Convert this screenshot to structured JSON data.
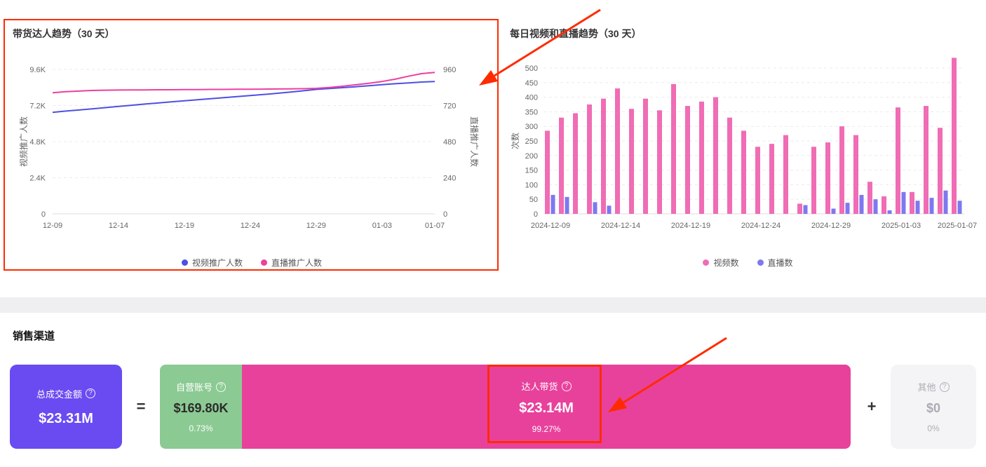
{
  "page": {
    "annotation_color": "#FF2B00"
  },
  "chart_data": [
    {
      "id": "promoter-trend",
      "type": "line",
      "title": "带货达人趋势（30 天）",
      "grid": "horizontal-dashed",
      "legend_position": "bottom",
      "x": [
        "12-09",
        "12-10",
        "12-11",
        "12-12",
        "12-13",
        "12-14",
        "12-15",
        "12-16",
        "12-17",
        "12-18",
        "12-19",
        "12-20",
        "12-21",
        "12-22",
        "12-23",
        "12-24",
        "12-25",
        "12-26",
        "12-27",
        "12-28",
        "12-29",
        "12-30",
        "12-31",
        "01-01",
        "01-02",
        "01-03",
        "01-04",
        "01-05",
        "01-06",
        "01-07"
      ],
      "x_tick_index": [
        0,
        5,
        10,
        15,
        20,
        25,
        29
      ],
      "x_tick_labels": [
        "12-09",
        "12-14",
        "12-19",
        "12-24",
        "12-29",
        "01-03",
        "01-07"
      ],
      "left_axis": {
        "label": "视频推广人数",
        "max": 9600,
        "ticks": [
          0,
          2400,
          4800,
          7200,
          9600
        ],
        "tick_labels": [
          "0",
          "2.4K",
          "4.8K",
          "7.2K",
          "9.6K"
        ]
      },
      "right_axis": {
        "label": "直播推广人数",
        "max": 960,
        "ticks": [
          0,
          240,
          480,
          720,
          960
        ],
        "tick_labels": [
          "0",
          "240",
          "480",
          "720",
          "960"
        ]
      },
      "series": [
        {
          "name": "视频推广人数",
          "axis": "left",
          "color": "#4D50E2",
          "values": [
            6750,
            6830,
            6900,
            6980,
            7060,
            7140,
            7220,
            7300,
            7370,
            7440,
            7510,
            7580,
            7650,
            7720,
            7790,
            7860,
            7930,
            8010,
            8090,
            8180,
            8270,
            8330,
            8390,
            8450,
            8520,
            8590,
            8650,
            8700,
            8760,
            8800
          ]
        },
        {
          "name": "直播推广人数",
          "axis": "right",
          "color": "#EC3F9F",
          "values": [
            805,
            812,
            816,
            820,
            822,
            823,
            824,
            824,
            825,
            825,
            826,
            826,
            827,
            827,
            828,
            828,
            829,
            830,
            831,
            832,
            834,
            840,
            848,
            858,
            868,
            880,
            895,
            915,
            932,
            940
          ]
        }
      ]
    },
    {
      "id": "daily-video-live-trend",
      "type": "bar",
      "title": "每日视频和直播趋势（30 天）",
      "ylabel": "次数",
      "y_max": 500,
      "y_ticks": [
        0,
        50,
        100,
        150,
        200,
        250,
        300,
        350,
        400,
        450,
        500
      ],
      "grid": "horizontal-dashed",
      "legend_position": "bottom",
      "x": [
        "2024-12-09",
        "2024-12-10",
        "2024-12-11",
        "2024-12-12",
        "2024-12-13",
        "2024-12-14",
        "2024-12-15",
        "2024-12-16",
        "2024-12-17",
        "2024-12-18",
        "2024-12-19",
        "2024-12-20",
        "2024-12-21",
        "2024-12-22",
        "2024-12-23",
        "2024-12-24",
        "2024-12-25",
        "2024-12-26",
        "2024-12-27",
        "2024-12-28",
        "2024-12-29",
        "2024-12-30",
        "2024-12-31",
        "2025-01-01",
        "2025-01-02",
        "2025-01-03",
        "2025-01-04",
        "2025-01-05",
        "2025-01-06",
        "2025-01-07"
      ],
      "x_tick_index": [
        0,
        5,
        10,
        15,
        20,
        25,
        29
      ],
      "x_tick_labels": [
        "2024-12-09",
        "2024-12-14",
        "2024-12-19",
        "2024-12-24",
        "2024-12-29",
        "2025-01-03",
        "2025-01-07"
      ],
      "series": [
        {
          "name": "视频数",
          "color": "#F06CB4",
          "values": [
            285,
            330,
            345,
            375,
            395,
            430,
            360,
            395,
            355,
            445,
            370,
            385,
            400,
            330,
            285,
            230,
            240,
            270,
            35,
            230,
            245,
            300,
            270,
            110,
            60,
            365,
            75,
            370,
            295,
            535
          ]
        },
        {
          "name": "直播数",
          "color": "#7E78EF",
          "values": [
            65,
            58,
            0,
            40,
            28,
            0,
            0,
            0,
            0,
            0,
            0,
            0,
            0,
            0,
            0,
            0,
            0,
            0,
            30,
            0,
            18,
            38,
            65,
            50,
            12,
            75,
            45,
            55,
            80,
            45
          ]
        }
      ]
    }
  ],
  "sales": {
    "section_title": "销售渠道",
    "equals": "=",
    "plus": "+",
    "total": {
      "label": "总成交金额",
      "value": "$23.31M",
      "color": "#6A4BF2"
    },
    "self_operated": {
      "label": "自营账号",
      "value": "$169.80K",
      "percent": "0.73%",
      "color": "#8CCA93"
    },
    "influencer": {
      "label": "达人带货",
      "value": "$23.14M",
      "percent": "99.27%",
      "color": "#E8419C"
    },
    "other": {
      "label": "其他",
      "value": "$0",
      "percent": "0%",
      "color": "#F4F4F6"
    }
  }
}
